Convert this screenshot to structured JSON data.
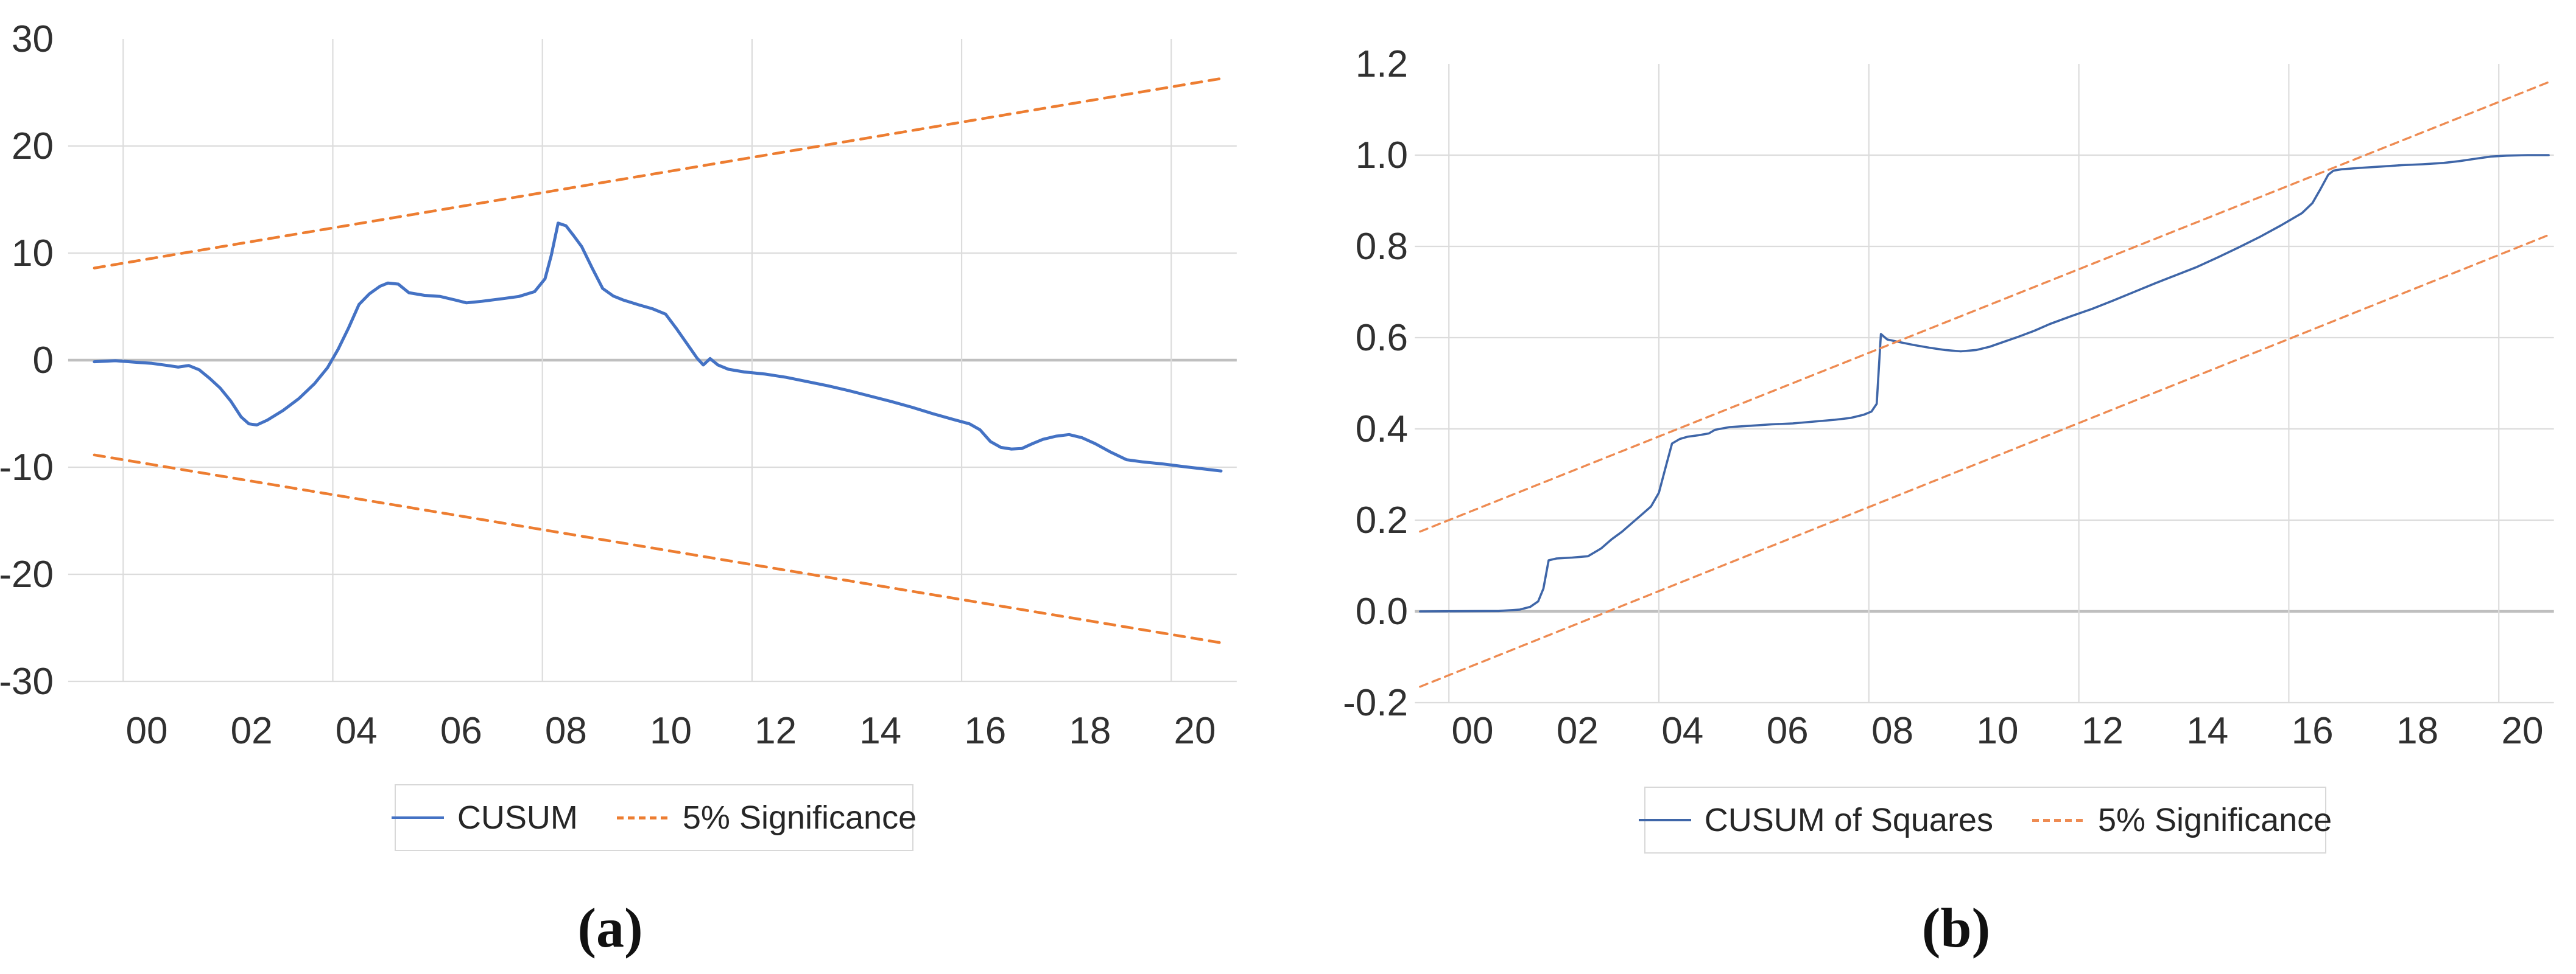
{
  "figure": {
    "panels": [
      {
        "caption": "(a)",
        "legend": {
          "series_label": "CUSUM",
          "band_label": "5% Significance"
        }
      },
      {
        "caption": "(b)",
        "legend": {
          "series_label": "CUSUM of Squares",
          "band_label": "5% Significance"
        }
      }
    ]
  },
  "colors": {
    "series_blue_a": "#4472C4",
    "series_blue_b": "#3F66A8",
    "band_orange_a": "#ED7D31",
    "band_orange_b": "#EE8B52",
    "grid": "#DCDCDC",
    "zero_line": "#BFBFBF",
    "tick_text": "#303030",
    "legend_border": "#D8D8D8"
  },
  "chart_data": [
    {
      "type": "line",
      "title": "",
      "xlabel": "",
      "ylabel": "",
      "grid": true,
      "legend_position": "bottom",
      "xlim": [
        1998.5,
        2020.8
      ],
      "ylim": [
        -30,
        30
      ],
      "x_tick_labels": [
        "00",
        "02",
        "04",
        "06",
        "08",
        "10",
        "12",
        "14",
        "16",
        "18",
        "20"
      ],
      "x_tick_years": [
        2000,
        2002,
        2004,
        2006,
        2008,
        2010,
        2012,
        2014,
        2016,
        2018,
        2020
      ],
      "x_gridline_years": [
        1999.55,
        2003.55,
        2007.55,
        2011.55,
        2015.55,
        2019.55
      ],
      "yticks": [
        {
          "v": 30,
          "label": "30",
          "grid": false,
          "dark": false
        },
        {
          "v": 20,
          "label": "20",
          "grid": true,
          "dark": false
        },
        {
          "v": 10,
          "label": "10",
          "grid": true,
          "dark": false
        },
        {
          "v": 0,
          "label": "0",
          "grid": true,
          "dark": true
        },
        {
          "v": -10,
          "label": "-10",
          "grid": true,
          "dark": false
        },
        {
          "v": -20,
          "label": "-20",
          "grid": true,
          "dark": false
        },
        {
          "v": -30,
          "label": "-30",
          "grid": true,
          "dark": false
        }
      ],
      "series": [
        {
          "name": "CUSUM",
          "style": "solid",
          "color_key": "series_blue_a",
          "points": [
            [
              1999.0,
              -0.15
            ],
            [
              1999.4,
              -0.05
            ],
            [
              1999.8,
              -0.2
            ],
            [
              2000.1,
              -0.3
            ],
            [
              2000.4,
              -0.5
            ],
            [
              2000.6,
              -0.65
            ],
            [
              2000.8,
              -0.5
            ],
            [
              2001.0,
              -0.9
            ],
            [
              2001.2,
              -1.7
            ],
            [
              2001.4,
              -2.6
            ],
            [
              2001.6,
              -3.8
            ],
            [
              2001.8,
              -5.3
            ],
            [
              2001.95,
              -5.95
            ],
            [
              2002.1,
              -6.05
            ],
            [
              2002.3,
              -5.6
            ],
            [
              2002.6,
              -4.7
            ],
            [
              2002.9,
              -3.6
            ],
            [
              2003.2,
              -2.2
            ],
            [
              2003.45,
              -0.7
            ],
            [
              2003.65,
              1.0
            ],
            [
              2003.85,
              3.0
            ],
            [
              2004.05,
              5.2
            ],
            [
              2004.25,
              6.2
            ],
            [
              2004.45,
              6.9
            ],
            [
              2004.6,
              7.2
            ],
            [
              2004.8,
              7.1
            ],
            [
              2005.0,
              6.3
            ],
            [
              2005.3,
              6.05
            ],
            [
              2005.6,
              5.95
            ],
            [
              2005.9,
              5.6
            ],
            [
              2006.1,
              5.35
            ],
            [
              2006.4,
              5.5
            ],
            [
              2006.8,
              5.75
            ],
            [
              2007.1,
              5.95
            ],
            [
              2007.4,
              6.4
            ],
            [
              2007.6,
              7.6
            ],
            [
              2007.72,
              9.8
            ],
            [
              2007.85,
              12.8
            ],
            [
              2008.0,
              12.55
            ],
            [
              2008.15,
              11.6
            ],
            [
              2008.3,
              10.6
            ],
            [
              2008.5,
              8.6
            ],
            [
              2008.7,
              6.7
            ],
            [
              2008.9,
              6.0
            ],
            [
              2009.1,
              5.6
            ],
            [
              2009.4,
              5.15
            ],
            [
              2009.65,
              4.8
            ],
            [
              2009.9,
              4.3
            ],
            [
              2010.1,
              3.0
            ],
            [
              2010.3,
              1.6
            ],
            [
              2010.5,
              0.2
            ],
            [
              2010.62,
              -0.45
            ],
            [
              2010.75,
              0.15
            ],
            [
              2010.9,
              -0.45
            ],
            [
              2011.1,
              -0.85
            ],
            [
              2011.4,
              -1.1
            ],
            [
              2011.8,
              -1.3
            ],
            [
              2012.2,
              -1.6
            ],
            [
              2012.6,
              -2.0
            ],
            [
              2013.0,
              -2.4
            ],
            [
              2013.4,
              -2.85
            ],
            [
              2013.8,
              -3.35
            ],
            [
              2014.2,
              -3.85
            ],
            [
              2014.6,
              -4.4
            ],
            [
              2015.0,
              -5.0
            ],
            [
              2015.4,
              -5.55
            ],
            [
              2015.7,
              -5.95
            ],
            [
              2015.9,
              -6.5
            ],
            [
              2016.1,
              -7.6
            ],
            [
              2016.3,
              -8.15
            ],
            [
              2016.5,
              -8.3
            ],
            [
              2016.7,
              -8.25
            ],
            [
              2016.9,
              -7.8
            ],
            [
              2017.1,
              -7.4
            ],
            [
              2017.35,
              -7.1
            ],
            [
              2017.6,
              -6.95
            ],
            [
              2017.85,
              -7.25
            ],
            [
              2018.1,
              -7.8
            ],
            [
              2018.4,
              -8.6
            ],
            [
              2018.7,
              -9.3
            ],
            [
              2019.0,
              -9.5
            ],
            [
              2019.4,
              -9.7
            ],
            [
              2019.8,
              -9.95
            ],
            [
              2020.15,
              -10.15
            ],
            [
              2020.5,
              -10.35
            ]
          ]
        },
        {
          "name": "5% Significance (upper)",
          "style": "dashed",
          "color_key": "band_orange_a",
          "points": [
            [
              1999.0,
              8.6
            ],
            [
              2020.5,
              26.3
            ]
          ]
        },
        {
          "name": "5% Significance (lower)",
          "style": "dashed",
          "color_key": "band_orange_a",
          "points": [
            [
              1999.0,
              -8.85
            ],
            [
              2020.5,
              -26.4
            ]
          ]
        }
      ]
    },
    {
      "type": "line",
      "title": "",
      "xlabel": "",
      "ylabel": "",
      "grid": true,
      "legend_position": "bottom",
      "xlim": [
        1998.9,
        2020.6
      ],
      "ylim": [
        -0.2,
        1.2
      ],
      "x_tick_labels": [
        "00",
        "02",
        "04",
        "06",
        "08",
        "10",
        "12",
        "14",
        "16",
        "18",
        "20"
      ],
      "x_tick_years": [
        2000,
        2002,
        2004,
        2006,
        2008,
        2010,
        2012,
        2014,
        2016,
        2018,
        2020
      ],
      "x_gridline_years": [
        1999.55,
        2003.55,
        2007.55,
        2011.55,
        2015.55,
        2019.55
      ],
      "yticks": [
        {
          "v": 1.2,
          "label": "1.2",
          "grid": false,
          "dark": false
        },
        {
          "v": 1.0,
          "label": "1.0",
          "grid": true,
          "dark": false
        },
        {
          "v": 0.8,
          "label": "0.8",
          "grid": true,
          "dark": false
        },
        {
          "v": 0.6,
          "label": "0.6",
          "grid": true,
          "dark": false
        },
        {
          "v": 0.4,
          "label": "0.4",
          "grid": true,
          "dark": false
        },
        {
          "v": 0.2,
          "label": "0.2",
          "grid": true,
          "dark": false
        },
        {
          "v": 0.0,
          "label": "0.0",
          "grid": true,
          "dark": true
        },
        {
          "v": -0.2,
          "label": "-0.2",
          "grid": true,
          "dark": false
        }
      ],
      "series": [
        {
          "name": "CUSUM of Squares",
          "style": "solid",
          "color_key": "series_blue_b",
          "points": [
            [
              1999.0,
              0.0
            ],
            [
              2000.5,
              0.001
            ],
            [
              2000.9,
              0.004
            ],
            [
              2001.1,
              0.01
            ],
            [
              2001.25,
              0.022
            ],
            [
              2001.35,
              0.05
            ],
            [
              2001.45,
              0.112
            ],
            [
              2001.6,
              0.116
            ],
            [
              2001.9,
              0.118
            ],
            [
              2002.2,
              0.121
            ],
            [
              2002.45,
              0.138
            ],
            [
              2002.65,
              0.158
            ],
            [
              2002.85,
              0.175
            ],
            [
              2003.05,
              0.195
            ],
            [
              2003.25,
              0.215
            ],
            [
              2003.4,
              0.23
            ],
            [
              2003.55,
              0.26
            ],
            [
              2003.7,
              0.325
            ],
            [
              2003.8,
              0.368
            ],
            [
              2003.95,
              0.378
            ],
            [
              2004.1,
              0.383
            ],
            [
              2004.3,
              0.386
            ],
            [
              2004.5,
              0.39
            ],
            [
              2004.62,
              0.398
            ],
            [
              2004.9,
              0.404
            ],
            [
              2005.3,
              0.407
            ],
            [
              2005.7,
              0.41
            ],
            [
              2006.1,
              0.412
            ],
            [
              2006.5,
              0.416
            ],
            [
              2006.9,
              0.42
            ],
            [
              2007.2,
              0.424
            ],
            [
              2007.45,
              0.431
            ],
            [
              2007.6,
              0.438
            ],
            [
              2007.7,
              0.455
            ],
            [
              2007.78,
              0.608
            ],
            [
              2007.9,
              0.596
            ],
            [
              2008.1,
              0.591
            ],
            [
              2008.4,
              0.584
            ],
            [
              2008.7,
              0.578
            ],
            [
              2009.0,
              0.573
            ],
            [
              2009.3,
              0.57
            ],
            [
              2009.6,
              0.573
            ],
            [
              2009.85,
              0.58
            ],
            [
              2010.1,
              0.59
            ],
            [
              2010.4,
              0.602
            ],
            [
              2010.7,
              0.615
            ],
            [
              2011.0,
              0.63
            ],
            [
              2011.4,
              0.647
            ],
            [
              2011.8,
              0.663
            ],
            [
              2012.2,
              0.681
            ],
            [
              2012.6,
              0.7
            ],
            [
              2013.0,
              0.719
            ],
            [
              2013.4,
              0.737
            ],
            [
              2013.8,
              0.755
            ],
            [
              2014.2,
              0.776
            ],
            [
              2014.6,
              0.798
            ],
            [
              2015.0,
              0.821
            ],
            [
              2015.4,
              0.846
            ],
            [
              2015.8,
              0.873
            ],
            [
              2016.0,
              0.895
            ],
            [
              2016.15,
              0.925
            ],
            [
              2016.3,
              0.957
            ],
            [
              2016.4,
              0.966
            ],
            [
              2016.55,
              0.969
            ],
            [
              2016.9,
              0.972
            ],
            [
              2017.3,
              0.975
            ],
            [
              2017.7,
              0.978
            ],
            [
              2018.1,
              0.98
            ],
            [
              2018.5,
              0.983
            ],
            [
              2018.8,
              0.987
            ],
            [
              2019.1,
              0.992
            ],
            [
              2019.4,
              0.997
            ],
            [
              2019.7,
              0.999
            ],
            [
              2020.1,
              1.0
            ],
            [
              2020.5,
              1.0
            ]
          ]
        },
        {
          "name": "5% Significance (upper)",
          "style": "dashed",
          "color_key": "band_orange_b",
          "points": [
            [
              1999.0,
              0.175
            ],
            [
              2020.5,
              1.16
            ]
          ]
        },
        {
          "name": "5% Significance (lower)",
          "style": "dashed",
          "color_key": "band_orange_b",
          "points": [
            [
              1999.0,
              -0.165
            ],
            [
              2020.5,
              0.825
            ]
          ]
        }
      ]
    }
  ]
}
